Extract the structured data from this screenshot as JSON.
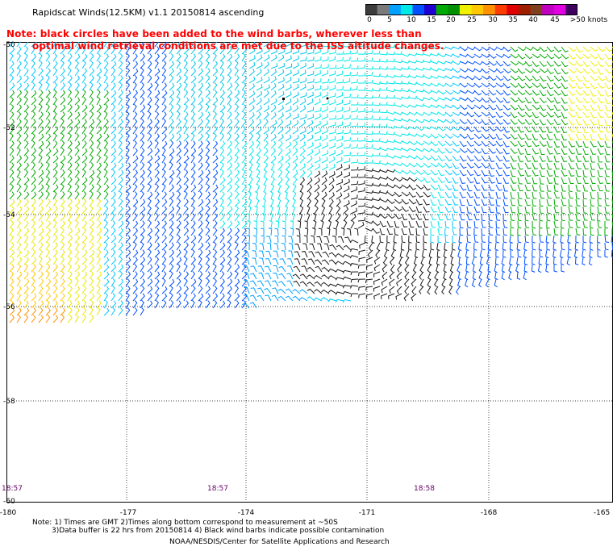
{
  "header": {
    "title": "Rapidscat Winds(12.5KM) v1.1 20150814 ascending",
    "note_line1": "Note: black circles have been added to the wind barbs, wherever less than",
    "note_line2": "optimal wind retrieval conditions are met due to the ISS altitude changes."
  },
  "colorbar": {
    "colors": [
      "#3c3c3c",
      "#7a7a7a",
      "#00a0ff",
      "#00e8e8",
      "#0050ff",
      "#1e00d0",
      "#00aa00",
      "#009000",
      "#f0f000",
      "#ffc800",
      "#ff9000",
      "#ff3c00",
      "#e00000",
      "#a01e00",
      "#804020",
      "#c000c0",
      "#e000e0",
      "#400060"
    ],
    "labels": [
      "0",
      "5",
      "10",
      "15",
      "20",
      "25",
      "30",
      "35",
      "40",
      "45",
      ">50 knots"
    ]
  },
  "axes": {
    "lat_labels": [
      "-50",
      "-52",
      "-54",
      "-56",
      "-58",
      "-60"
    ],
    "lon_labels": [
      "-180",
      "-177",
      "-174",
      "-171",
      "-168",
      "-165"
    ]
  },
  "times": [
    "18:57",
    "18:57",
    "18:58"
  ],
  "footer": {
    "line1": "Note: 1) Times are GMT 2)Times along bottom correspond to measurement at ~50S",
    "line2": "3)Data buffer is 22 hrs from 20150814 4) Black wind barbs indicate possible contamination",
    "line3": "NOAA/NESDIS/Center for Satellite Applications and Research"
  }
}
